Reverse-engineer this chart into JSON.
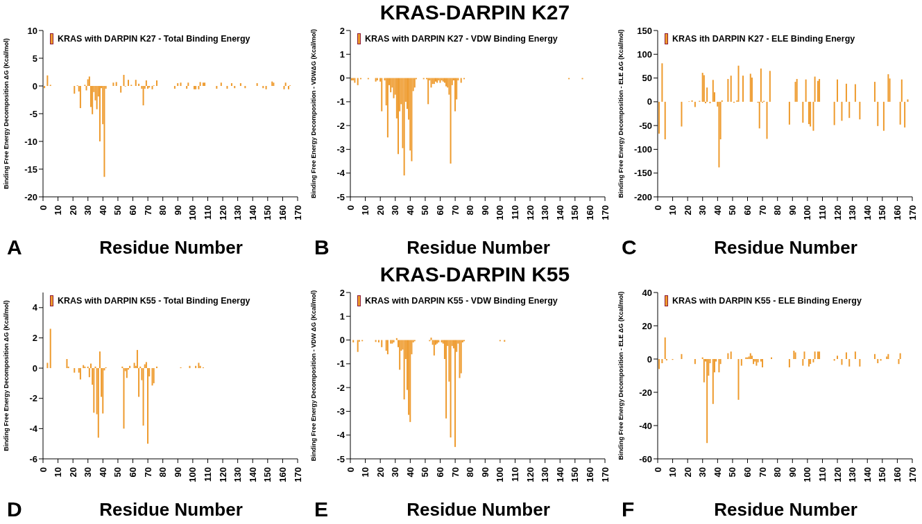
{
  "chart_data": [
    {
      "type": "bar",
      "xlabel": "Residue Number",
      "ylabel": "Binding Free Energy Decomposition ΔG (Kcal/mol)",
      "legend": "top left",
      "annotations": [
        "A"
      ],
      "xlim": [
        0,
        170
      ],
      "xticks": [
        0,
        10,
        20,
        30,
        40,
        50,
        60,
        70,
        80,
        90,
        100,
        110,
        120,
        130,
        140,
        150,
        160,
        170
      ],
      "ylim": [
        -20,
        10
      ],
      "yticks": [
        -20,
        -15,
        -10,
        -5,
        0,
        5,
        10
      ],
      "x": [
        1,
        3,
        5,
        21,
        23,
        24,
        25,
        28,
        29,
        30,
        31,
        32,
        33,
        34,
        35,
        36,
        37,
        38,
        39,
        40,
        41,
        42,
        47,
        49,
        52,
        54,
        55,
        57,
        59,
        62,
        64,
        66,
        67,
        68,
        69,
        70,
        71,
        73,
        74,
        76,
        88,
        90,
        92,
        96,
        97,
        101,
        102,
        104,
        105,
        107,
        108,
        116,
        119,
        123,
        126,
        128,
        132,
        135,
        143,
        147,
        149,
        153,
        154,
        161,
        162,
        164,
        165
      ],
      "series": [
        {
          "name": "KRAS with DARPIN K27 - Total Binding Energy",
          "color": "#ee9a2c",
          "values": [
            -0.4,
            1.9,
            0.2,
            -1.4,
            0.1,
            -1.0,
            -4.0,
            0.2,
            -0.8,
            1.2,
            1.7,
            -3.8,
            -5.1,
            -1.1,
            -2.6,
            -4.2,
            -1.9,
            -10.0,
            -0.4,
            -6.9,
            -16.4,
            -0.5,
            0.6,
            0.7,
            -1.2,
            2.0,
            -0.1,
            1.1,
            0.2,
            1.1,
            0.4,
            -0.5,
            -3.5,
            -0.5,
            1.0,
            -0.5,
            -0.3,
            -0.6,
            0.1,
            1.0,
            -0.5,
            0.5,
            0.6,
            -0.5,
            0.6,
            -0.6,
            -0.6,
            -0.6,
            0.7,
            0.6,
            0.6,
            -0.5,
            0.6,
            -0.5,
            0.5,
            -0.4,
            0.5,
            -0.4,
            0.5,
            -0.4,
            -0.6,
            0.8,
            0.6,
            -0.6,
            0.6,
            -0.6,
            0.1
          ]
        }
      ]
    },
    {
      "type": "bar",
      "title": "KRAS-DARPIN K27",
      "xlabel": "Residue Number",
      "ylabel": "Binding Free Energy Decomposition  - VDWΔG (Kcal/mol)",
      "legend": "top left",
      "annotations": [
        "B"
      ],
      "xlim": [
        0,
        170
      ],
      "xticks": [
        0,
        10,
        20,
        30,
        40,
        50,
        60,
        70,
        80,
        90,
        100,
        110,
        120,
        130,
        140,
        150,
        160,
        170
      ],
      "ylim": [
        -5,
        2
      ],
      "yticks": [
        -5,
        -4,
        -3,
        -2,
        -1,
        0,
        1,
        2
      ],
      "x": [
        1,
        2,
        3,
        5,
        7,
        12,
        17,
        18,
        20,
        21,
        23,
        24,
        25,
        26,
        27,
        28,
        29,
        30,
        31,
        32,
        33,
        34,
        35,
        36,
        37,
        38,
        39,
        40,
        41,
        42,
        43,
        44,
        49,
        51,
        52,
        53,
        54,
        55,
        56,
        57,
        58,
        59,
        60,
        61,
        62,
        63,
        64,
        65,
        66,
        67,
        68,
        69,
        70,
        71,
        72,
        74,
        76,
        146,
        155
      ],
      "series": [
        {
          "name": "KRAS with DARPIN K27 - VDW Binding Energy",
          "color": "#ee9a2c",
          "values": [
            -0.1,
            -0.1,
            -0.2,
            -0.3,
            -0.05,
            -0.05,
            -0.15,
            -0.1,
            -0.15,
            -1.4,
            -0.1,
            -1.15,
            -2.5,
            -0.3,
            -0.6,
            -0.4,
            -0.85,
            -0.7,
            -1.7,
            -3.2,
            -1.4,
            -1.1,
            -2.95,
            -4.1,
            -1.0,
            -1.3,
            -1.75,
            -3.05,
            -3.5,
            -0.55,
            -0.4,
            -0.05,
            -0.05,
            -0.05,
            -1.1,
            -0.1,
            -0.4,
            -0.25,
            -0.25,
            -0.15,
            -0.2,
            -0.1,
            -0.2,
            -0.1,
            -0.15,
            -0.2,
            -0.35,
            -0.4,
            -0.7,
            -3.6,
            -0.3,
            -0.1,
            -1.4,
            -0.9,
            -0.1,
            -0.2,
            -0.05,
            -0.05,
            -0.05
          ]
        }
      ]
    },
    {
      "type": "bar",
      "xlabel": "Residue Number",
      "ylabel": "Binding Free Energy Decomposition  - ELE ΔG (Kcal/mol)",
      "legend": "top left",
      "annotations": [
        "C"
      ],
      "xlim": [
        0,
        170
      ],
      "xticks": [
        0,
        10,
        20,
        30,
        40,
        50,
        60,
        70,
        80,
        90,
        100,
        110,
        120,
        130,
        140,
        150,
        160,
        170
      ],
      "ylim": [
        -200,
        150
      ],
      "yticks": [
        -200,
        -150,
        -100,
        -50,
        0,
        50,
        100,
        150
      ],
      "x": [
        1,
        3,
        5,
        16,
        21,
        23,
        25,
        28,
        30,
        31,
        32,
        33,
        35,
        37,
        38,
        40,
        41,
        42,
        43,
        47,
        49,
        51,
        53,
        54,
        57,
        62,
        63,
        67,
        68,
        69,
        70,
        71,
        73,
        75,
        88,
        92,
        93,
        97,
        99,
        101,
        102,
        104,
        105,
        107,
        108,
        118,
        120,
        123,
        126,
        128,
        132,
        135,
        145,
        147,
        151,
        154,
        155,
        162,
        163,
        165,
        167
      ],
      "series": [
        {
          "name": "KRAS ith DARPIN K27 - ELE Binding Energy",
          "color": "#ee9a2c",
          "values": [
            -67,
            81,
            -79,
            -52,
            1,
            3,
            -11,
            2,
            61,
            56,
            -3,
            30,
            -3,
            46,
            20,
            -10,
            -138,
            -79,
            3,
            48,
            55,
            -2,
            3,
            76,
            55,
            59,
            51,
            -2,
            -56,
            70,
            -2,
            2,
            -78,
            65,
            -48,
            42,
            48,
            -44,
            47,
            -47,
            -52,
            -61,
            53,
            44,
            48,
            -49,
            47,
            -40,
            38,
            -34,
            37,
            -37,
            42,
            -51,
            -61,
            58,
            49,
            -48,
            47,
            -54,
            5
          ]
        }
      ]
    },
    {
      "type": "bar",
      "xlabel": "Residue Number",
      "ylabel": "Binding Free Energy Decomposition  ΔG (Kcal/mol)",
      "legend": "top left",
      "annotations": [
        "D"
      ],
      "xlim": [
        0,
        170
      ],
      "xticks": [
        0,
        10,
        20,
        30,
        40,
        50,
        60,
        70,
        80,
        90,
        100,
        110,
        120,
        130,
        140,
        150,
        160,
        170
      ],
      "ylim": [
        -6,
        5
      ],
      "yticks": [
        -6,
        -4,
        -2,
        0,
        2,
        4
      ],
      "x": [
        3,
        5,
        16,
        17,
        21,
        24,
        25,
        27,
        28,
        30,
        31,
        32,
        33,
        34,
        35,
        36,
        37,
        38,
        39,
        40,
        41,
        42,
        53,
        54,
        55,
        56,
        57,
        58,
        61,
        62,
        63,
        64,
        65,
        66,
        67,
        68,
        69,
        70,
        71,
        73,
        74,
        76,
        92,
        98,
        102,
        104,
        105,
        107
      ],
      "series": [
        {
          "name": "KRAS  with DARPIN K55 - Total Binding Energy",
          "color": "#ee9a2c",
          "values": [
            0.35,
            2.6,
            0.6,
            0.1,
            -0.3,
            -0.3,
            -0.75,
            0.2,
            0.1,
            0.1,
            -0.6,
            0.3,
            -1.1,
            -2.95,
            0.1,
            -3.05,
            -4.6,
            1.1,
            -1.9,
            -3.0,
            -0.15,
            0.05,
            0.1,
            -4.0,
            -0.2,
            -0.65,
            -0.1,
            0.15,
            0.35,
            0.15,
            1.2,
            -1.9,
            0.1,
            -0.8,
            -3.8,
            0.25,
            0.4,
            -5.0,
            -0.55,
            -1.15,
            -1.0,
            0.1,
            0.05,
            0.15,
            0.15,
            0.35,
            0.15,
            0.05
          ]
        }
      ]
    },
    {
      "type": "bar",
      "title": "KRAS-DARPIN K55",
      "xlabel": "Residue Number",
      "ylabel": "Binding Free Energy Decomposition  - VDW  ΔG (Kcal/mol)",
      "legend": "top left",
      "annotations": [
        "E"
      ],
      "xlim": [
        0,
        170
      ],
      "xticks": [
        0,
        10,
        20,
        30,
        40,
        50,
        60,
        70,
        80,
        90,
        100,
        110,
        120,
        130,
        140,
        150,
        160,
        170
      ],
      "ylim": [
        -5,
        2
      ],
      "yticks": [
        -5,
        -4,
        -3,
        -2,
        -1,
        0,
        1,
        2
      ],
      "x": [
        2,
        5,
        6,
        8,
        17,
        19,
        21,
        24,
        25,
        27,
        28,
        29,
        31,
        32,
        33,
        34,
        35,
        36,
        37,
        38,
        39,
        40,
        41,
        42,
        43,
        53,
        54,
        55,
        56,
        57,
        58,
        59,
        61,
        62,
        63,
        64,
        65,
        66,
        67,
        68,
        69,
        70,
        71,
        72,
        73,
        74,
        75,
        76,
        100,
        103
      ],
      "series": [
        {
          "name": "KRAS with DARPIN K55 - VDW Binding Energy",
          "color": "#ee9a2c",
          "values": [
            -0.1,
            -0.5,
            -0.07,
            -0.05,
            -0.08,
            -0.1,
            -0.3,
            -0.45,
            -0.6,
            -0.15,
            -0.15,
            -0.1,
            0.08,
            -0.3,
            -1.25,
            -0.45,
            -0.4,
            -2.5,
            -0.8,
            -2.1,
            -3.15,
            -3.45,
            -0.6,
            -0.1,
            -0.05,
            -0.05,
            0.1,
            -0.2,
            -0.65,
            -0.2,
            -0.15,
            -0.1,
            -0.1,
            -0.15,
            -0.8,
            -3.3,
            -0.25,
            -1.75,
            -4.1,
            -0.25,
            -0.35,
            -4.5,
            -0.5,
            -0.15,
            -1.6,
            -1.4,
            -0.1,
            -0.05,
            -0.05,
            -0.07
          ]
        }
      ]
    },
    {
      "type": "bar",
      "xlabel": "Residue Number",
      "ylabel": "Binding Free Energy Decomposition  - ELE ΔG (Kcal/mol)",
      "legend": "top left",
      "annotations": [
        "F"
      ],
      "xlim": [
        0,
        170
      ],
      "xticks": [
        0,
        10,
        20,
        30,
        40,
        50,
        60,
        70,
        80,
        90,
        100,
        110,
        120,
        130,
        140,
        150,
        160,
        170
      ],
      "ylim": [
        -60,
        40
      ],
      "yticks": [
        -60,
        -40,
        -20,
        0,
        20,
        40
      ],
      "x": [
        1,
        3,
        5,
        6,
        10,
        16,
        25,
        30,
        31,
        32,
        33,
        34,
        35,
        37,
        38,
        39,
        41,
        42,
        47,
        49,
        54,
        56,
        59,
        60,
        61,
        62,
        63,
        64,
        65,
        66,
        67,
        69,
        70,
        76,
        88,
        91,
        92,
        97,
        98,
        101,
        102,
        104,
        105,
        107,
        108,
        118,
        120,
        123,
        126,
        128,
        132,
        135,
        145,
        147,
        149,
        153,
        154,
        161,
        162
      ],
      "series": [
        {
          "name": "KRAS with DARPIN K55 - ELE Binding Energy",
          "color": "#ee9a2c",
          "values": [
            -6,
            -2.5,
            13,
            -0.8,
            -0.5,
            3,
            -3,
            1,
            -14,
            -1.5,
            -50.5,
            -10,
            -2.5,
            -27,
            -8,
            -1.5,
            -8,
            -3,
            3.5,
            4.5,
            -24.5,
            -4,
            1,
            1,
            1.5,
            3.5,
            2,
            -3,
            -1.5,
            -4,
            -2,
            -1.5,
            -5,
            1,
            -5,
            5,
            4,
            -4,
            4.5,
            -4.5,
            -3,
            -2,
            4.5,
            4.5,
            4.5,
            -1,
            2,
            -3.5,
            4,
            -4.5,
            4.5,
            -4.5,
            3,
            -2.5,
            -1,
            1.5,
            3,
            -3,
            3.5
          ]
        }
      ]
    }
  ]
}
